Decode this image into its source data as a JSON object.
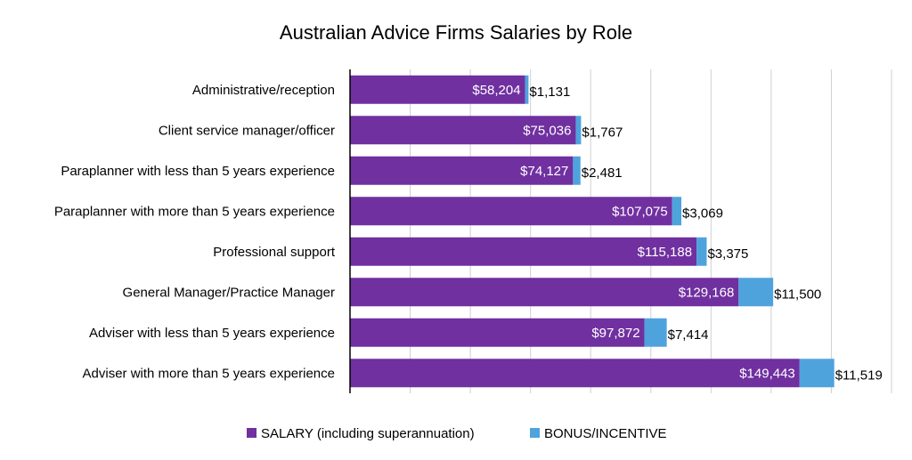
{
  "chart_data": {
    "type": "bar",
    "orientation": "horizontal",
    "stacked": true,
    "title": "Australian Advice Firms Salaries by Role",
    "categories": [
      "Administrative/reception",
      "Client service manager/officer",
      "Paraplanner with less than 5 years experience",
      "Paraplanner with more than 5 years experience",
      "Professional support",
      "General Manager/Practice Manager",
      "Adviser with less than 5 years experience",
      "Adviser with more than 5 years experience"
    ],
    "series": [
      {
        "name": "SALARY (including superannuation)",
        "color": "#7030A0",
        "values": [
          58204,
          75036,
          74127,
          107075,
          115188,
          129168,
          97872,
          149443
        ],
        "labels": [
          "$58,204",
          "$75,036",
          "$74,127",
          "$107,075",
          "$115,188",
          "$129,168",
          "$97,872",
          "$149,443"
        ]
      },
      {
        "name": "BONUS/INCENTIVE",
        "color": "#4FA3DD",
        "values": [
          1131,
          1767,
          2481,
          3069,
          3375,
          11500,
          7414,
          11519
        ],
        "labels": [
          "$1,131",
          "$1,767",
          "$2,481",
          "$3,069",
          "$3,375",
          "$11,500",
          "$7,414",
          "$11,519"
        ]
      }
    ],
    "xlim": [
      0,
      180000
    ],
    "grid": true,
    "legend": "bottom"
  }
}
